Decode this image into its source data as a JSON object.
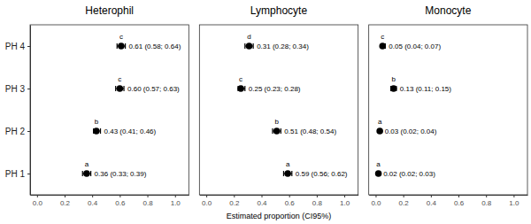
{
  "chart_data": [
    {
      "type": "forest",
      "title": "Heterophil",
      "orientation": "horizontal",
      "color": "#000000",
      "categories": [
        "PH 1",
        "PH 2",
        "PH 3",
        "PH 4"
      ],
      "values": [
        0.36,
        0.43,
        0.6,
        0.61
      ],
      "ci_lower": [
        0.33,
        0.41,
        0.57,
        0.58
      ],
      "ci_upper": [
        0.39,
        0.46,
        0.63,
        0.64
      ],
      "letters": [
        "a",
        "b",
        "c",
        "c"
      ],
      "data_labels": true,
      "value_labels": [
        "0.36 (0.33; 0.39)",
        "0.43 (0.41; 0.46)",
        "0.60 (0.57; 0.63)",
        "0.61 (0.58; 0.64)"
      ],
      "xlim": [
        -0.05,
        1.1
      ],
      "xticks": [
        {
          "value": 0,
          "label": "0.0"
        },
        0.2,
        0.4,
        0.6,
        0.8,
        {
          "value": 1,
          "label": "1.0"
        }
      ]
    },
    {
      "type": "forest",
      "title": "Lymphocyte",
      "orientation": "horizontal",
      "color": "#000000",
      "xlabel": "Estimated proportion (CI95%)",
      "categories": [
        "PH 1",
        "PH 2",
        "PH 3",
        "PH 4"
      ],
      "values": [
        0.59,
        0.51,
        0.25,
        0.31
      ],
      "ci_lower": [
        0.56,
        0.48,
        0.23,
        0.28
      ],
      "ci_upper": [
        0.62,
        0.54,
        0.28,
        0.34
      ],
      "letters": [
        "a",
        "b",
        "c",
        "d"
      ],
      "data_labels": true,
      "value_labels": [
        "0.59 (0.56; 0.62)",
        "0.51 (0.48; 0.54)",
        "0.25 (0.23; 0.28)",
        "0.31 (0.28; 0.34)"
      ],
      "xlim": [
        -0.05,
        1.1
      ],
      "xticks": [
        {
          "value": 0,
          "label": "0.0"
        },
        0.2,
        0.4,
        0.6,
        0.8,
        {
          "value": 1,
          "label": "1.0"
        }
      ],
      "tick_labels": "x"
    },
    {
      "type": "forest",
      "title": "Monocyte",
      "orientation": "horizontal",
      "color": "#000000",
      "categories": [
        "PH 1",
        "PH 2",
        "PH 3",
        "PH 4"
      ],
      "values": [
        0.02,
        0.03,
        0.13,
        0.05
      ],
      "ci_lower": [
        0.02,
        0.02,
        0.11,
        0.04
      ],
      "ci_upper": [
        0.03,
        0.04,
        0.15,
        0.07
      ],
      "letters": [
        "a",
        "a",
        "b",
        "c"
      ],
      "data_labels": true,
      "value_labels": [
        "0.02 (0.02; 0.03)",
        "0.03 (0.02; 0.04)",
        "0.13 (0.11; 0.15)",
        "0.05 (0.04; 0.07)"
      ],
      "xlim": [
        -0.05,
        1.1
      ],
      "xticks": [
        {
          "value": 0,
          "label": "0.0"
        },
        0.2,
        0.4,
        0.6,
        0.8,
        {
          "value": 1,
          "label": "1.0"
        }
      ],
      "tick_labels": "x"
    }
  ]
}
